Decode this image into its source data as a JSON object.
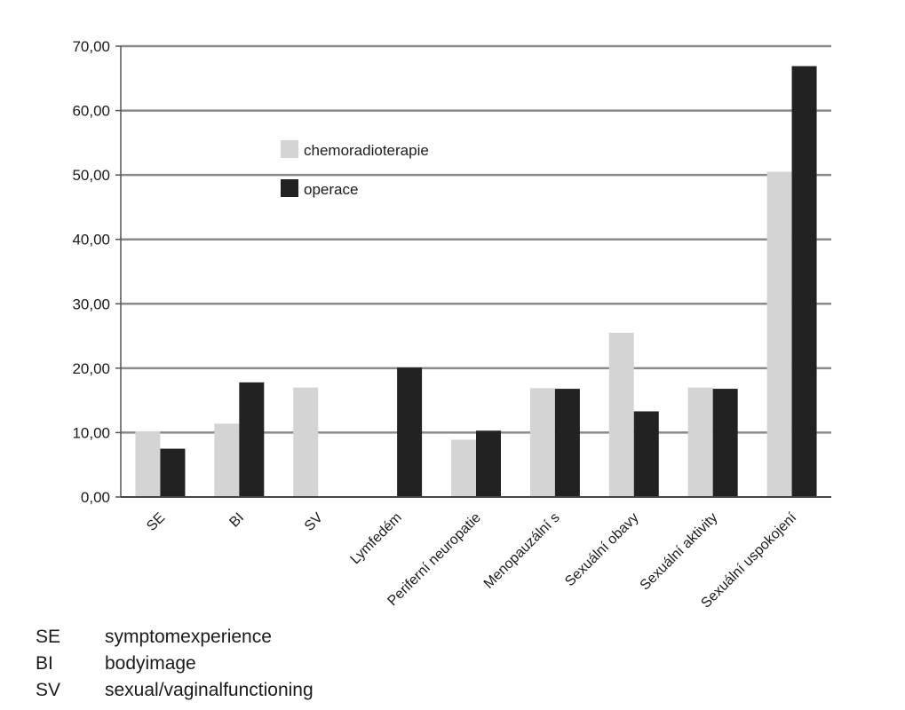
{
  "chart_data": {
    "type": "bar",
    "categories": [
      "SE",
      "BI",
      "SV",
      "Lymfedém",
      "Periferní neuropatie",
      "Menopauzální s",
      "Sexuální obavy",
      "Sexuální aktivity",
      "Sexuální uspokojení"
    ],
    "series": [
      {
        "name": "chemoradioterapie",
        "color": "#d4d4d4",
        "values": [
          10.2,
          11.4,
          17.0,
          null,
          8.9,
          16.9,
          25.5,
          17.0,
          50.5
        ]
      },
      {
        "name": "operace",
        "color": "#222222",
        "values": [
          7.5,
          17.8,
          null,
          20.1,
          10.3,
          16.8,
          13.3,
          16.8,
          66.9
        ]
      }
    ],
    "ylim": [
      0,
      70
    ],
    "yticks": [
      "0,00",
      "10,00",
      "20,00",
      "30,00",
      "40,00",
      "50,00",
      "60,00",
      "70,00"
    ],
    "grid": true,
    "legend": "top-left",
    "xlabel": "",
    "ylabel": ""
  },
  "abbreviations": [
    {
      "abbr": "SE",
      "meaning": "symptomexperience"
    },
    {
      "abbr": "BI",
      "meaning": "bodyimage"
    },
    {
      "abbr": "SV",
      "meaning": "sexual/vaginalfunctioning"
    }
  ]
}
